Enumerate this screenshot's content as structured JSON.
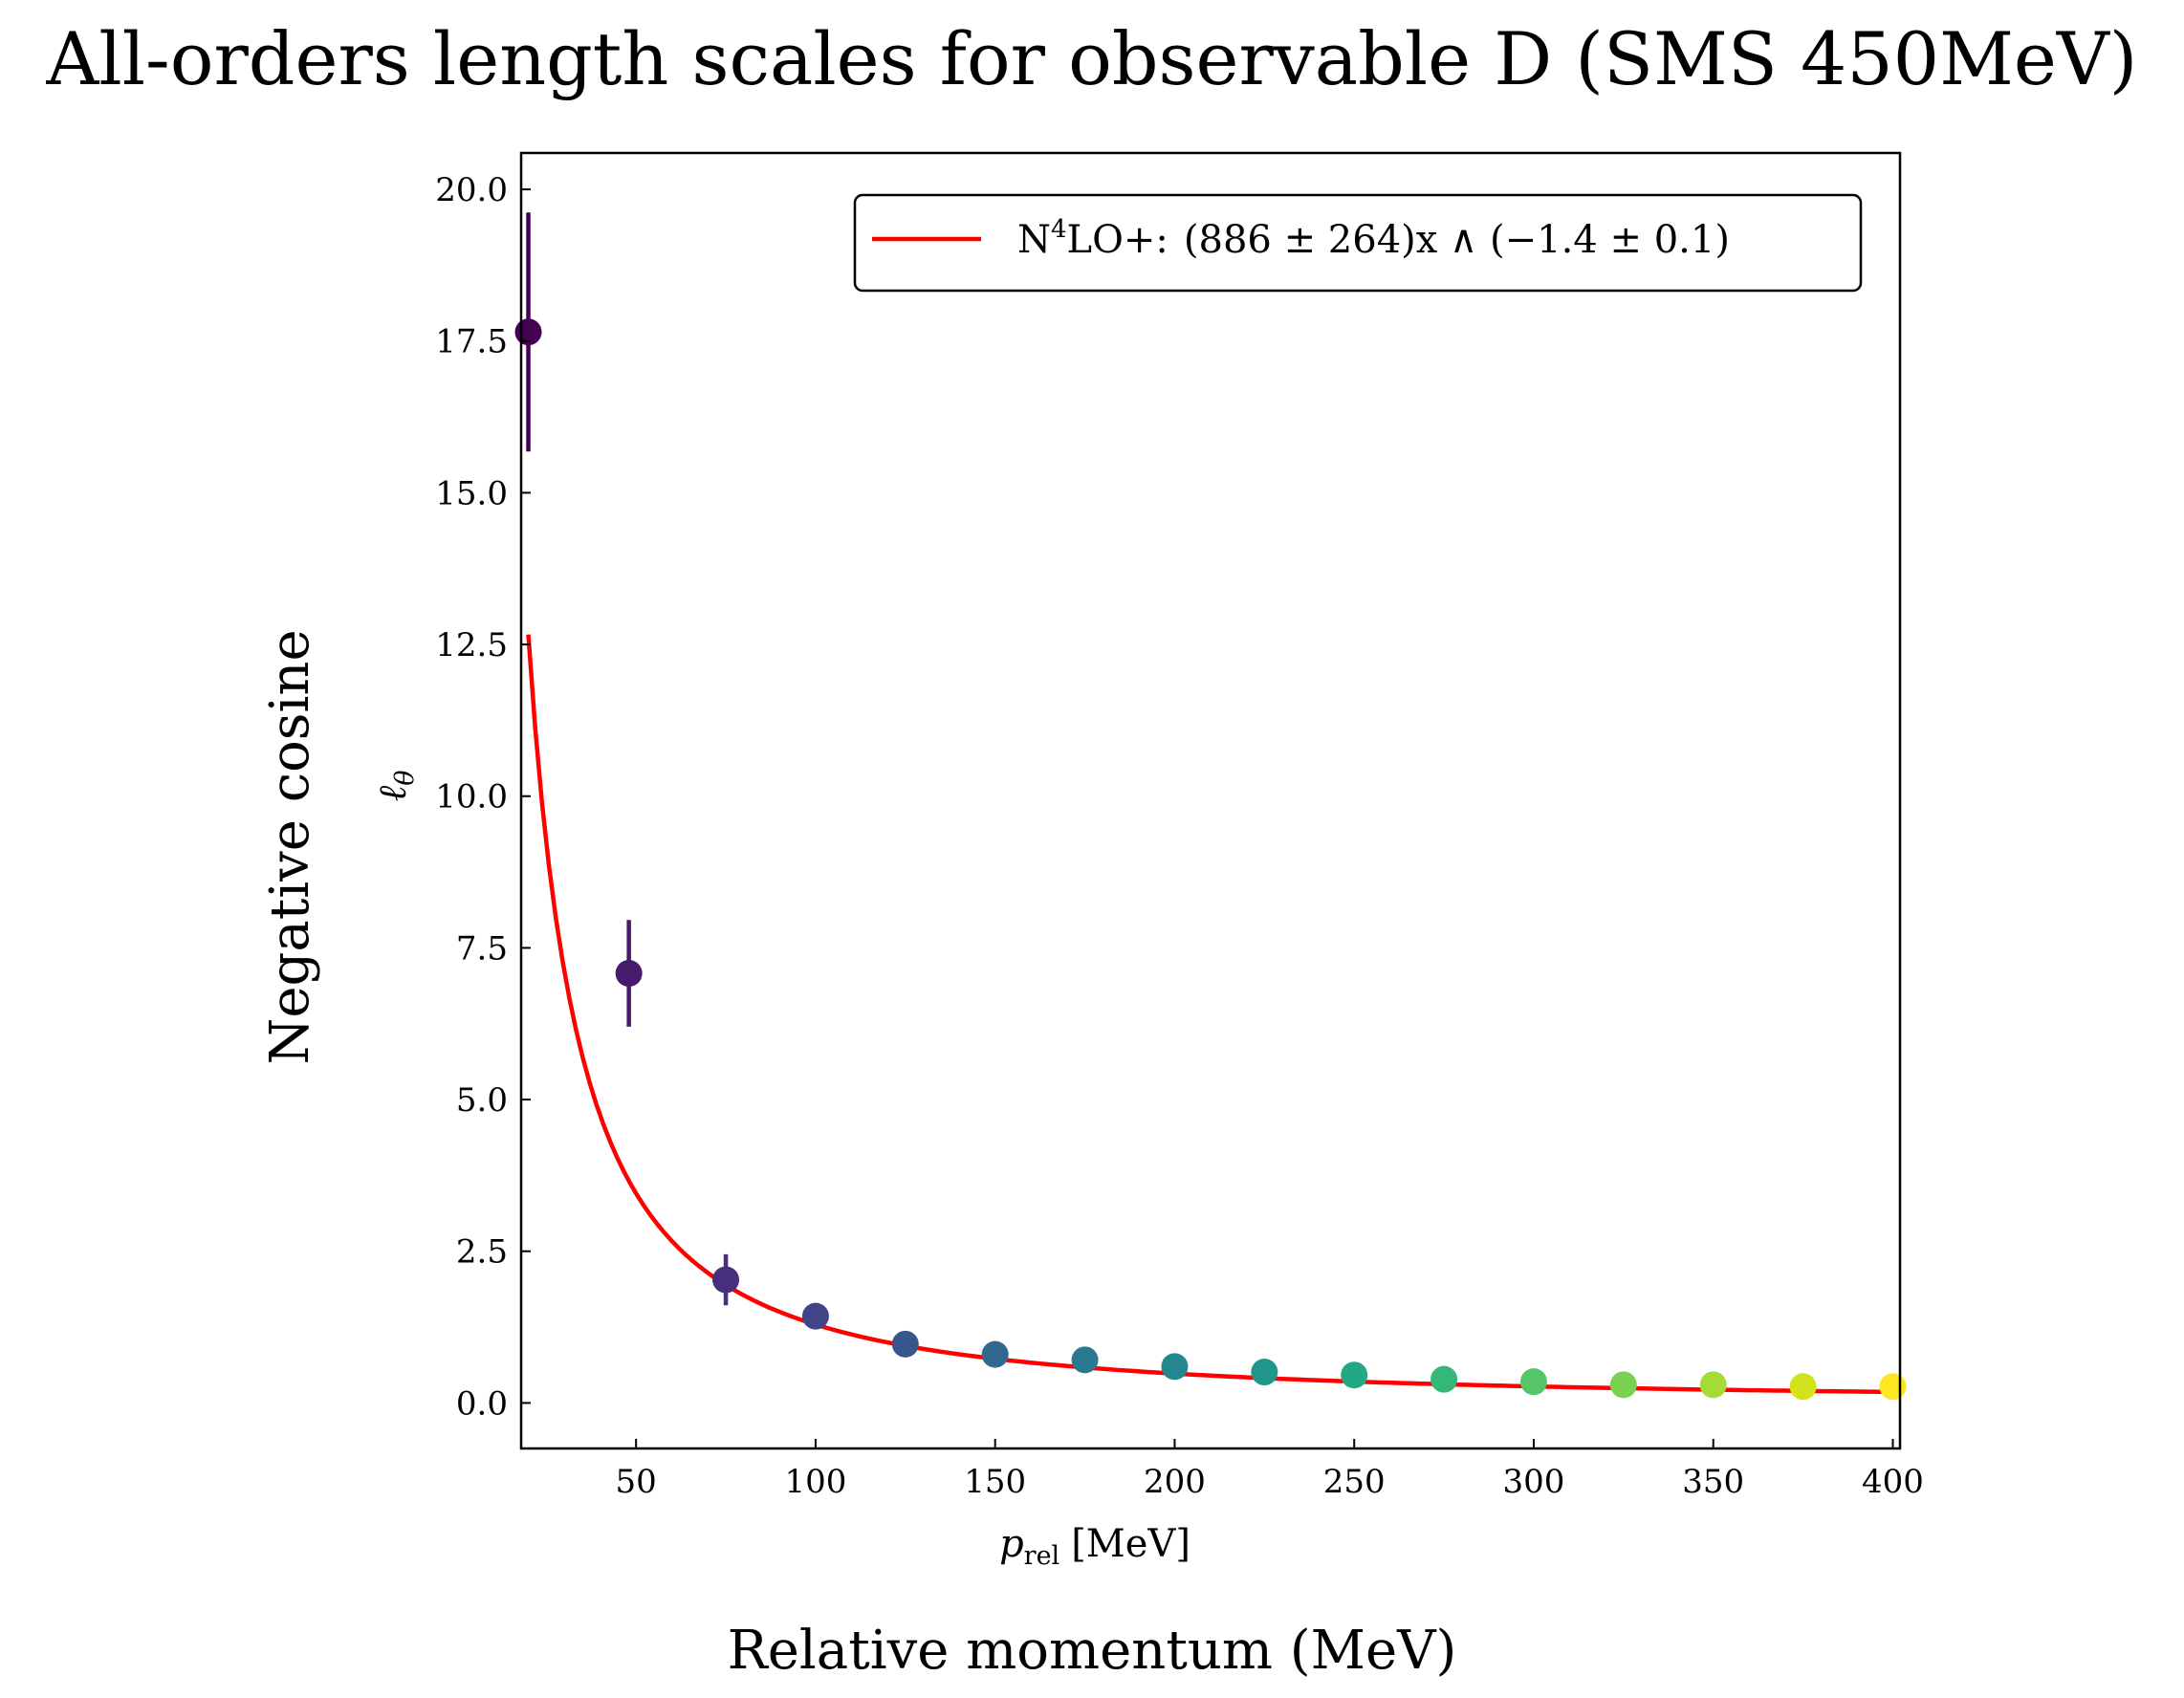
{
  "chart_data": {
    "type": "scatter",
    "title": "All-orders length scales for observable D (SMS 450MeV)",
    "supxlabel": "Relative momentum (MeV)",
    "supylabel": "Negative cosine",
    "xlabel_main": "p",
    "xlabel_sub": "rel",
    "xlabel_unit": "[MeV]",
    "ylabel_main": "ℓ",
    "ylabel_sub": "θ",
    "xlim": [
      18,
      402
    ],
    "ylim": [
      -0.75,
      20.6
    ],
    "xticks": [
      "50",
      "100",
      "150",
      "200",
      "250",
      "300",
      "350",
      "400"
    ],
    "yticks": [
      "0.0",
      "2.5",
      "5.0",
      "7.5",
      "10.0",
      "12.5",
      "15.0",
      "17.5",
      "20.0"
    ],
    "points": {
      "x": [
        20,
        48,
        75,
        100,
        125,
        150,
        175,
        200,
        225,
        250,
        275,
        300,
        325,
        350,
        375,
        400
      ],
      "y": [
        17.65,
        7.08,
        2.03,
        1.43,
        0.97,
        0.8,
        0.71,
        0.6,
        0.51,
        0.46,
        0.39,
        0.35,
        0.3,
        0.3,
        0.27,
        0.27
      ],
      "yerr": [
        1.97,
        0.88,
        0.42,
        0.0,
        0.0,
        0.0,
        0.0,
        0.0,
        0.0,
        0.0,
        0.0,
        0.0,
        0.0,
        0.0,
        0.0,
        0.0
      ],
      "colors": [
        "#440154",
        "#481a6c",
        "#472f7d",
        "#414487",
        "#39568c",
        "#31688e",
        "#2a788e",
        "#23888e",
        "#1f988b",
        "#22a884",
        "#35b779",
        "#54c568",
        "#7ad151",
        "#a5db36",
        "#d2e21b",
        "#fde725"
      ]
    },
    "fit": {
      "name_prefix": "N",
      "name_sup": "4",
      "name_suffix": "LO+:",
      "formula": "(886 ± 264)x ∧ (−1.4 ± 0.1)",
      "color": "#ff0000",
      "a": 886,
      "b": -1.418,
      "x_range": [
        20,
        400
      ]
    },
    "legend": "upper-right",
    "grid": false
  }
}
